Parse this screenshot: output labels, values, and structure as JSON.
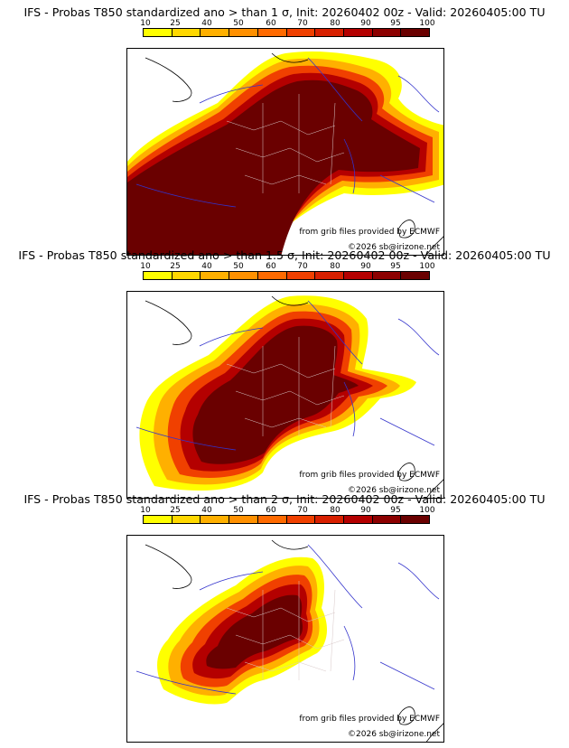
{
  "colorbar": {
    "labels": [
      "10",
      "25",
      "40",
      "50",
      "60",
      "70",
      "80",
      "90",
      "95",
      "100"
    ],
    "colors": [
      "#ffff00",
      "#ffd800",
      "#ffb000",
      "#ff9000",
      "#ff6a00",
      "#f04000",
      "#d82000",
      "#b40000",
      "#8c0000",
      "#6a0000"
    ]
  },
  "panels": [
    {
      "title": "IFS - Probas T850  standardized ano > than 1 σ, Init: 20260402 00z - Valid: 20260405:00 TU",
      "credit_source": "from grib files provided by ECMWF",
      "credit_copyright": "©2026 sb@irizone.net"
    },
    {
      "title": "IFS - Probas T850  standardized ano > than 1.5 σ, Init: 20260402 00z - Valid: 20260405:00 TU",
      "credit_source": "from grib files provided by ECMWF",
      "credit_copyright": "©2026 sb@irizone.net"
    },
    {
      "title": "IFS - Probas T850  standardized ano > than 2 σ, Init: 20260402 00z - Valid: 20260405:00 TU",
      "credit_source": "from grib files provided by ECMWF",
      "credit_copyright": "©2026 sb@irizone.net"
    }
  ]
}
